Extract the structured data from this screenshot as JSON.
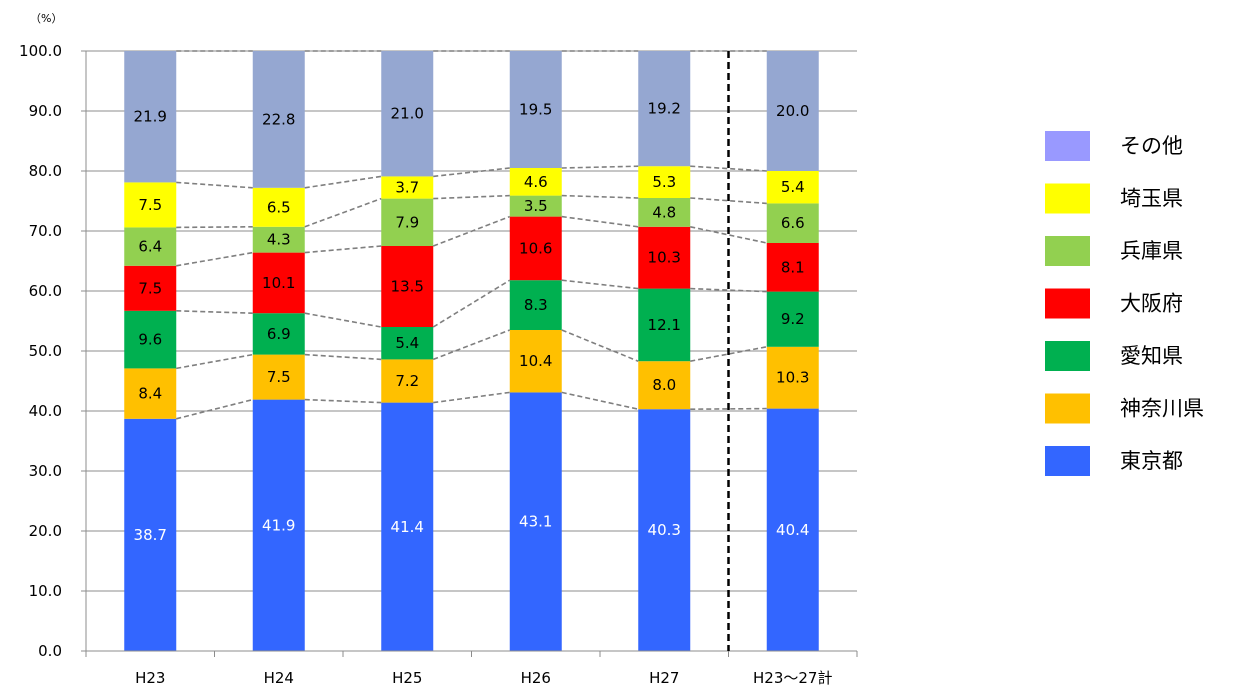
{
  "chart_data": {
    "type": "bar",
    "stacked": true,
    "unit_label": "（%）",
    "categories": [
      "H23",
      "H24",
      "H25",
      "H26",
      "H27",
      "H23～27計"
    ],
    "ylim": [
      0,
      100
    ],
    "yticks": [
      "0.0",
      "10.0",
      "20.0",
      "30.0",
      "40.0",
      "50.0",
      "60.0",
      "70.0",
      "80.0",
      "90.0",
      "100.0"
    ],
    "grid": true,
    "connector_lines": true,
    "separator_before_category_index": 5,
    "legend_position": "right",
    "series": [
      {
        "name": "東京都",
        "color": "#3366ff",
        "label_color": "#ffffff",
        "values": [
          38.7,
          41.9,
          41.4,
          43.1,
          40.3,
          40.4
        ]
      },
      {
        "name": "神奈川県",
        "color": "#ffc000",
        "label_color": "#000000",
        "values": [
          8.4,
          7.5,
          7.2,
          10.4,
          8.0,
          10.3
        ]
      },
      {
        "name": "愛知県",
        "color": "#00b050",
        "label_color": "#000000",
        "values": [
          9.6,
          6.9,
          5.4,
          8.3,
          12.1,
          9.2
        ]
      },
      {
        "name": "大阪府",
        "color": "#ff0000",
        "label_color": "#000000",
        "values": [
          7.5,
          10.1,
          13.5,
          10.6,
          10.3,
          8.1
        ]
      },
      {
        "name": "兵庫県",
        "color": "#92d050",
        "label_color": "#000000",
        "values": [
          6.4,
          4.3,
          7.9,
          3.5,
          4.8,
          6.6
        ]
      },
      {
        "name": "埼玉県",
        "color": "#ffff00",
        "label_color": "#000000",
        "values": [
          7.5,
          6.5,
          3.7,
          4.6,
          5.3,
          5.4
        ]
      },
      {
        "name": "その他",
        "color": "#95a7d1",
        "legend_color": "#9999ff",
        "label_color": "#000000",
        "values": [
          21.9,
          22.8,
          21.0,
          19.5,
          19.2,
          20.0
        ]
      }
    ]
  }
}
